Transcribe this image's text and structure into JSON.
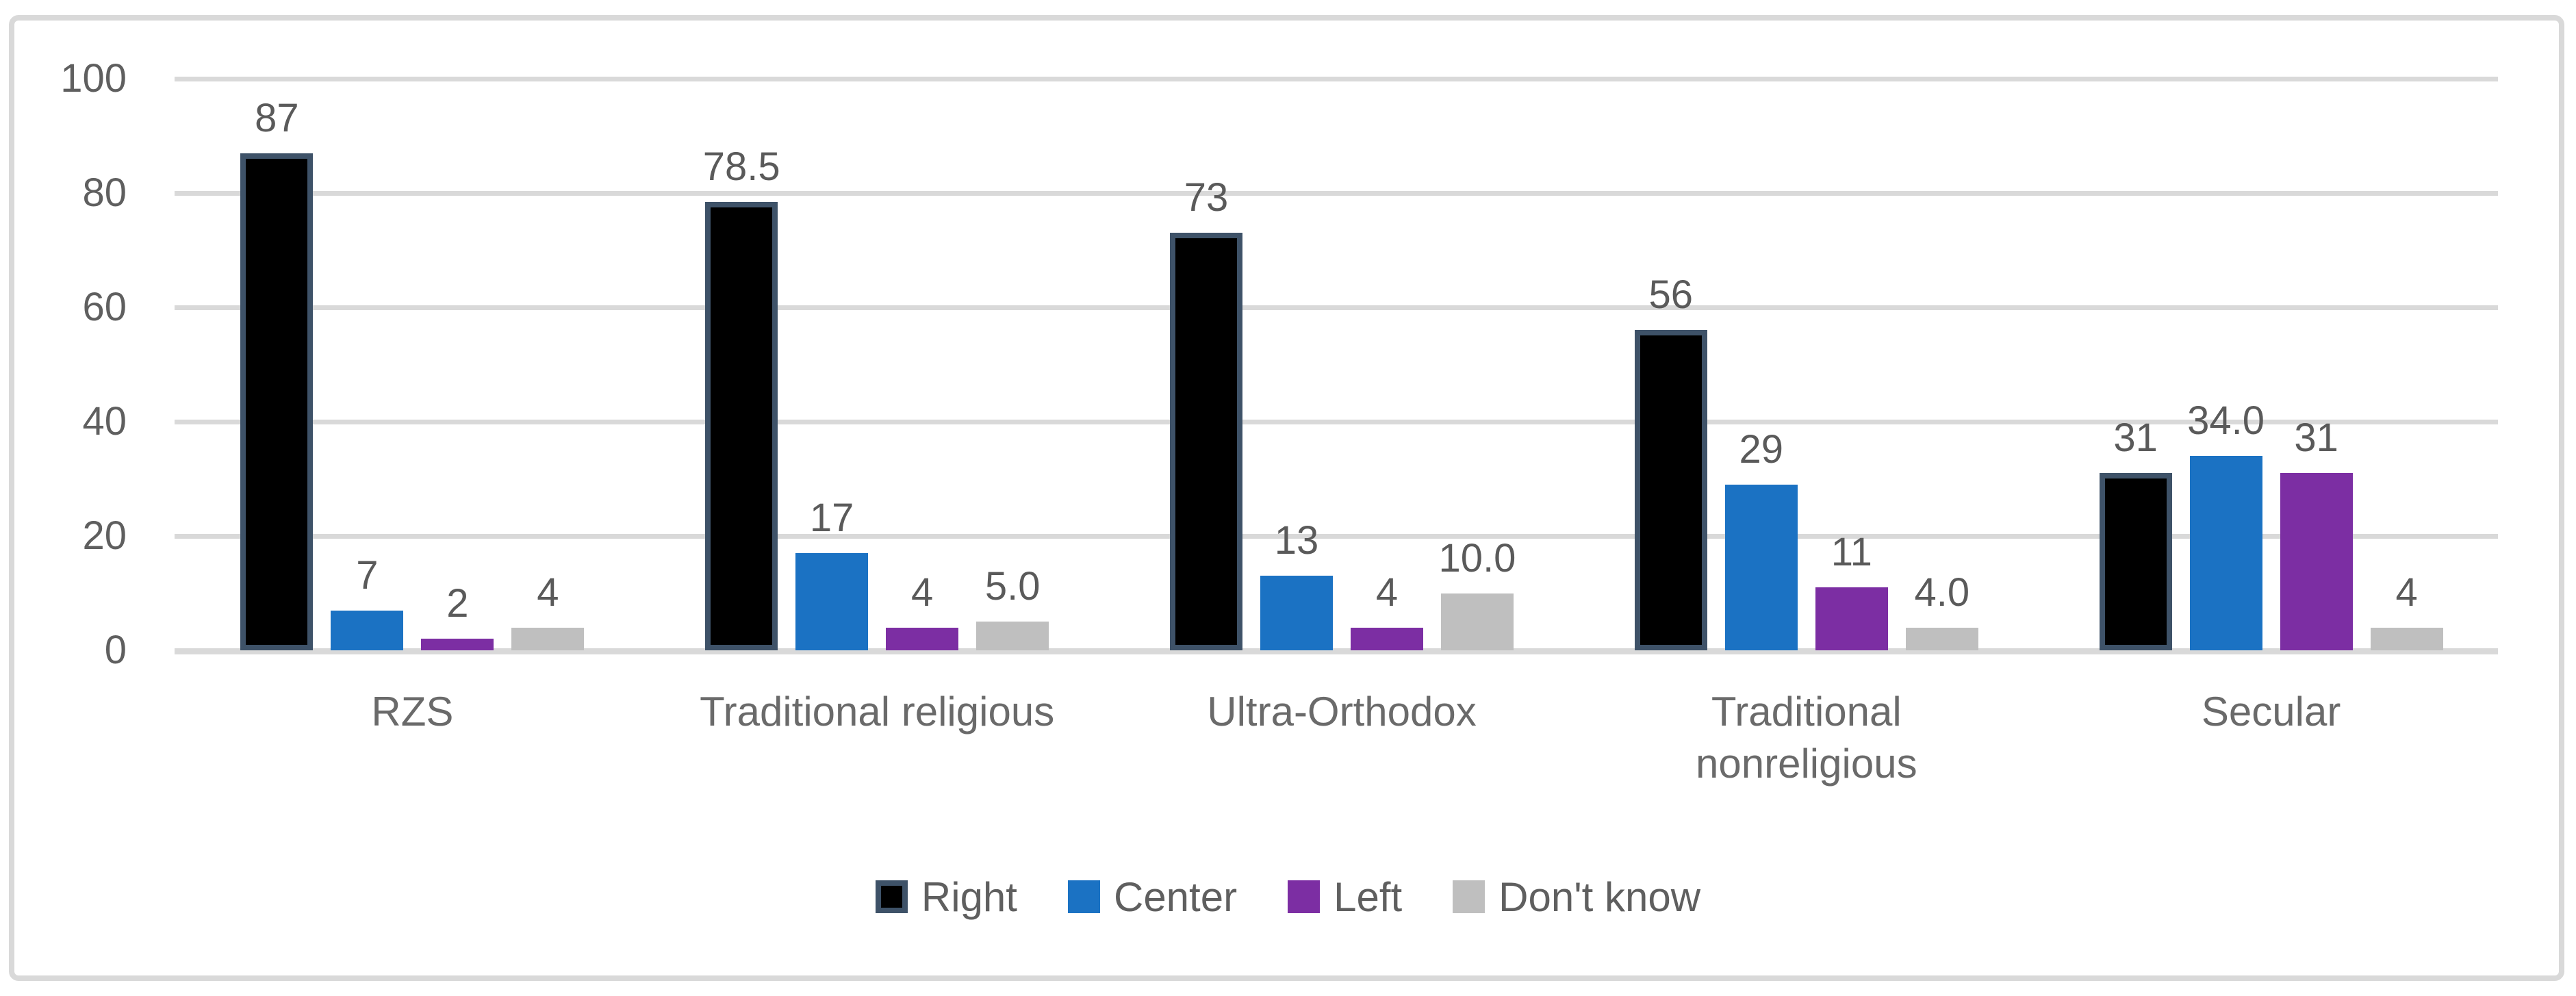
{
  "chart_data": {
    "type": "bar",
    "categories": [
      "RZS",
      "Traditional religious",
      "Ultra-Orthodox",
      "Traditional\nnonreligious",
      "Secular"
    ],
    "series": [
      {
        "name": "Right",
        "fill": "#000000",
        "border": "#3E5268",
        "values": [
          87,
          78.5,
          73,
          56,
          31
        ],
        "labels": [
          "87",
          "78.5",
          "73",
          "56",
          "31"
        ]
      },
      {
        "name": "Center",
        "fill": "#1B72C3",
        "border": null,
        "values": [
          7,
          17,
          13,
          29,
          34
        ],
        "labels": [
          "7",
          "17",
          "13",
          "29",
          "34.0"
        ]
      },
      {
        "name": "Left",
        "fill": "#7C2EA3",
        "border": null,
        "values": [
          2,
          4,
          4,
          11,
          31
        ],
        "labels": [
          "2",
          "4",
          "4",
          "11",
          "31"
        ]
      },
      {
        "name": "Don't know",
        "fill": "#BFBFBF",
        "border": null,
        "values": [
          4,
          5,
          10,
          4,
          4
        ],
        "labels": [
          "4",
          "5.0",
          "10.0",
          "4.0",
          "4"
        ]
      }
    ],
    "yticks": [
      "0",
      "20",
      "40",
      "60",
      "80",
      "100"
    ],
    "ylim": [
      0,
      100
    ],
    "ytick_step": 20,
    "grid": true,
    "legend_position": "bottom",
    "legend_labels": [
      "Right",
      "Center",
      "Left",
      "Don't know"
    ]
  },
  "style": {
    "background": "#FFFFFF",
    "frame_color": "#D9D9D9",
    "grid_color": "#D9D9D9",
    "axis_color": "#D9D9D9",
    "tick_text_color": "#5F5F5F",
    "data_label_color": "#5A5A5A",
    "category_text_color": "#6A6A6A",
    "legend_text_color": "#5F5F5F"
  }
}
